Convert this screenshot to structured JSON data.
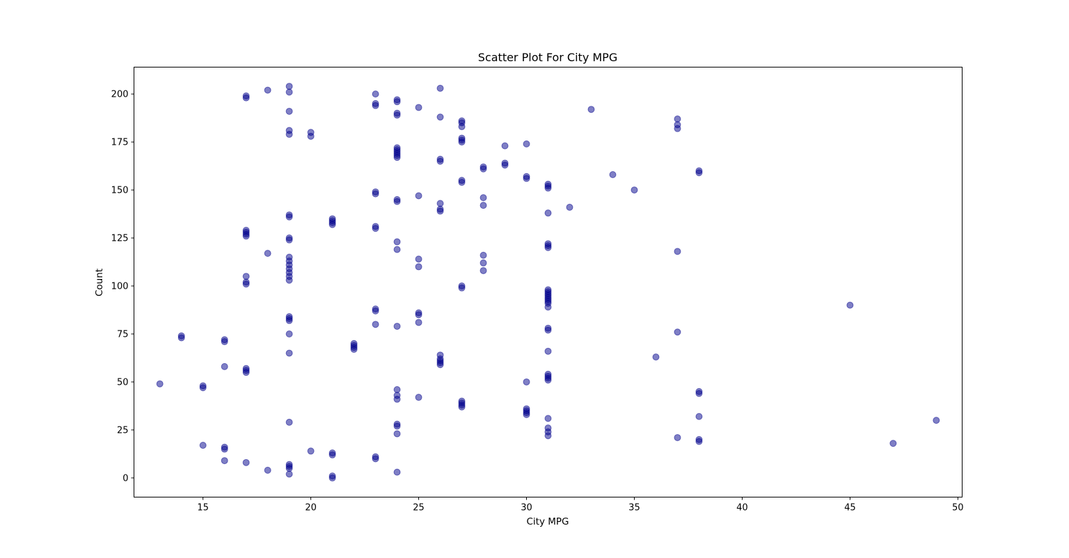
{
  "chart_data": {
    "type": "scatter",
    "title": "Scatter Plot For City MPG",
    "xlabel": "City MPG",
    "ylabel": "Count",
    "xlim": [
      11.8,
      50.2
    ],
    "ylim": [
      -10,
      214
    ],
    "xticks": [
      15,
      20,
      25,
      30,
      35,
      40,
      45,
      50
    ],
    "yticks": [
      0,
      25,
      50,
      75,
      100,
      125,
      150,
      175,
      200
    ],
    "grid": false,
    "legend": "none",
    "marker_color": "#00008b",
    "marker_alpha": 0.5,
    "points": [
      [
        13,
        49
      ],
      [
        14,
        73
      ],
      [
        14,
        74
      ],
      [
        15,
        17
      ],
      [
        15,
        47
      ],
      [
        15,
        48
      ],
      [
        16,
        9
      ],
      [
        16,
        15
      ],
      [
        16,
        16
      ],
      [
        16,
        58
      ],
      [
        16,
        71
      ],
      [
        16,
        72
      ],
      [
        17,
        8
      ],
      [
        17,
        55
      ],
      [
        17,
        56
      ],
      [
        17,
        57
      ],
      [
        17,
        101
      ],
      [
        17,
        102
      ],
      [
        17,
        105
      ],
      [
        17,
        126
      ],
      [
        17,
        127
      ],
      [
        17,
        128
      ],
      [
        17,
        129
      ],
      [
        17,
        198
      ],
      [
        17,
        199
      ],
      [
        18,
        4
      ],
      [
        18,
        117
      ],
      [
        18,
        202
      ],
      [
        19,
        2
      ],
      [
        19,
        5
      ],
      [
        19,
        6
      ],
      [
        19,
        7
      ],
      [
        19,
        29
      ],
      [
        19,
        65
      ],
      [
        19,
        75
      ],
      [
        19,
        82
      ],
      [
        19,
        83
      ],
      [
        19,
        84
      ],
      [
        19,
        103
      ],
      [
        19,
        105
      ],
      [
        19,
        107
      ],
      [
        19,
        109
      ],
      [
        19,
        111
      ],
      [
        19,
        113
      ],
      [
        19,
        115
      ],
      [
        19,
        124
      ],
      [
        19,
        125
      ],
      [
        19,
        136
      ],
      [
        19,
        137
      ],
      [
        19,
        179
      ],
      [
        19,
        181
      ],
      [
        19,
        191
      ],
      [
        19,
        201
      ],
      [
        19,
        204
      ],
      [
        20,
        14
      ],
      [
        20,
        178
      ],
      [
        20,
        180
      ],
      [
        21,
        0
      ],
      [
        21,
        1
      ],
      [
        21,
        12
      ],
      [
        21,
        13
      ],
      [
        21,
        132
      ],
      [
        21,
        133
      ],
      [
        21,
        134
      ],
      [
        21,
        135
      ],
      [
        22,
        67
      ],
      [
        22,
        68
      ],
      [
        22,
        69
      ],
      [
        22,
        70
      ],
      [
        23,
        10
      ],
      [
        23,
        11
      ],
      [
        23,
        80
      ],
      [
        23,
        87
      ],
      [
        23,
        88
      ],
      [
        23,
        130
      ],
      [
        23,
        131
      ],
      [
        23,
        148
      ],
      [
        23,
        149
      ],
      [
        23,
        194
      ],
      [
        23,
        195
      ],
      [
        23,
        200
      ],
      [
        24,
        3
      ],
      [
        24,
        23
      ],
      [
        24,
        27
      ],
      [
        24,
        28
      ],
      [
        24,
        41
      ],
      [
        24,
        43
      ],
      [
        24,
        46
      ],
      [
        24,
        79
      ],
      [
        24,
        119
      ],
      [
        24,
        123
      ],
      [
        24,
        144
      ],
      [
        24,
        145
      ],
      [
        24,
        167
      ],
      [
        24,
        168
      ],
      [
        24,
        169
      ],
      [
        24,
        170
      ],
      [
        24,
        171
      ],
      [
        24,
        172
      ],
      [
        24,
        189
      ],
      [
        24,
        190
      ],
      [
        24,
        196
      ],
      [
        24,
        197
      ],
      [
        25,
        42
      ],
      [
        25,
        81
      ],
      [
        25,
        85
      ],
      [
        25,
        86
      ],
      [
        25,
        110
      ],
      [
        25,
        114
      ],
      [
        25,
        147
      ],
      [
        25,
        193
      ],
      [
        26,
        59
      ],
      [
        26,
        60
      ],
      [
        26,
        61
      ],
      [
        26,
        62
      ],
      [
        26,
        64
      ],
      [
        26,
        139
      ],
      [
        26,
        140
      ],
      [
        26,
        143
      ],
      [
        26,
        165
      ],
      [
        26,
        166
      ],
      [
        26,
        188
      ],
      [
        26,
        203
      ],
      [
        27,
        37
      ],
      [
        27,
        38
      ],
      [
        27,
        39
      ],
      [
        27,
        40
      ],
      [
        27,
        99
      ],
      [
        27,
        100
      ],
      [
        27,
        154
      ],
      [
        27,
        155
      ],
      [
        27,
        175
      ],
      [
        27,
        176
      ],
      [
        27,
        177
      ],
      [
        27,
        183
      ],
      [
        27,
        185
      ],
      [
        27,
        186
      ],
      [
        28,
        108
      ],
      [
        28,
        112
      ],
      [
        28,
        116
      ],
      [
        28,
        142
      ],
      [
        28,
        146
      ],
      [
        28,
        161
      ],
      [
        28,
        162
      ],
      [
        29,
        163
      ],
      [
        29,
        164
      ],
      [
        29,
        173
      ],
      [
        30,
        33
      ],
      [
        30,
        34
      ],
      [
        30,
        35
      ],
      [
        30,
        36
      ],
      [
        30,
        50
      ],
      [
        30,
        156
      ],
      [
        30,
        157
      ],
      [
        30,
        174
      ],
      [
        31,
        22
      ],
      [
        31,
        24
      ],
      [
        31,
        26
      ],
      [
        31,
        31
      ],
      [
        31,
        51
      ],
      [
        31,
        52
      ],
      [
        31,
        53
      ],
      [
        31,
        54
      ],
      [
        31,
        66
      ],
      [
        31,
        77
      ],
      [
        31,
        78
      ],
      [
        31,
        89
      ],
      [
        31,
        91
      ],
      [
        31,
        92
      ],
      [
        31,
        93
      ],
      [
        31,
        94
      ],
      [
        31,
        95
      ],
      [
        31,
        96
      ],
      [
        31,
        97
      ],
      [
        31,
        98
      ],
      [
        31,
        120
      ],
      [
        31,
        121
      ],
      [
        31,
        122
      ],
      [
        31,
        138
      ],
      [
        31,
        151
      ],
      [
        31,
        152
      ],
      [
        31,
        153
      ],
      [
        32,
        141
      ],
      [
        33,
        192
      ],
      [
        34,
        158
      ],
      [
        35,
        150
      ],
      [
        36,
        63
      ],
      [
        37,
        21
      ],
      [
        37,
        76
      ],
      [
        37,
        118
      ],
      [
        37,
        182
      ],
      [
        37,
        184
      ],
      [
        37,
        187
      ],
      [
        38,
        19
      ],
      [
        38,
        20
      ],
      [
        38,
        32
      ],
      [
        38,
        44
      ],
      [
        38,
        45
      ],
      [
        38,
        159
      ],
      [
        38,
        160
      ],
      [
        45,
        90
      ],
      [
        47,
        18
      ],
      [
        49,
        30
      ]
    ]
  }
}
